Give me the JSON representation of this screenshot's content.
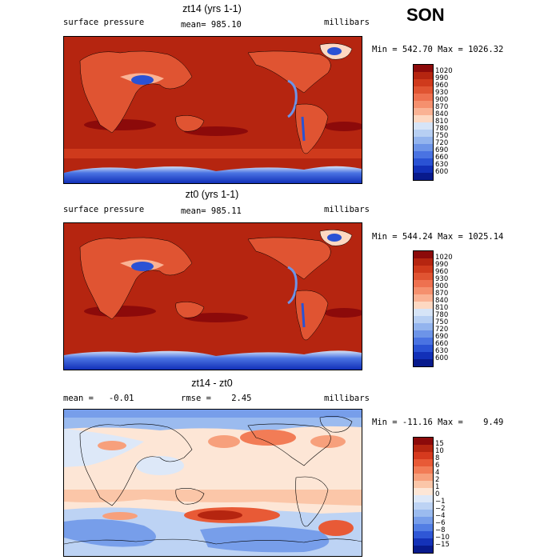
{
  "season": "SON",
  "panels": [
    {
      "title": "zt14 (yrs 1-1)",
      "left_label": "surface pressure",
      "center_label": "mean= 985.10",
      "right_label": "millibars",
      "stats": "Min = 542.70 Max = 1026.32",
      "colorbar": {
        "levels": [
          "1020",
          "990",
          "960",
          "930",
          "900",
          "870",
          "840",
          "810",
          "780",
          "750",
          "720",
          "690",
          "660",
          "630",
          "600"
        ],
        "colors": [
          "#8c0a0a",
          "#b52510",
          "#cf3a1c",
          "#e05432",
          "#ee7150",
          "#f5906e",
          "#fab294",
          "#fdd8c2",
          "#d6e4f7",
          "#b7cff3",
          "#93b4ee",
          "#6d94e8",
          "#4a73e2",
          "#2a52d4",
          "#1230b8",
          "#081a8c"
        ]
      },
      "map_style": "pressure"
    },
    {
      "title": "zt0 (yrs 1-1)",
      "left_label": "surface pressure",
      "center_label": "mean= 985.11",
      "right_label": "millibars",
      "stats": "Min = 544.24 Max = 1025.14",
      "colorbar": {
        "levels": [
          "1020",
          "990",
          "960",
          "930",
          "900",
          "870",
          "840",
          "810",
          "780",
          "750",
          "720",
          "690",
          "660",
          "630",
          "600"
        ],
        "colors": [
          "#8c0a0a",
          "#b52510",
          "#cf3a1c",
          "#e05432",
          "#ee7150",
          "#f5906e",
          "#fab294",
          "#fdd8c2",
          "#d6e4f7",
          "#b7cff3",
          "#93b4ee",
          "#6d94e8",
          "#4a73e2",
          "#2a52d4",
          "#1230b8",
          "#081a8c"
        ]
      },
      "map_style": "pressure"
    },
    {
      "title": "zt14 - zt0",
      "left_label": "mean =   -0.01",
      "center_label": "rmse =    2.45",
      "right_label": "millibars",
      "stats": "Min = -11.16 Max =    9.49",
      "colorbar": {
        "levels": [
          "15",
          "10",
          "8",
          "6",
          "4",
          "2",
          "1",
          "0",
          "−1",
          "−2",
          "−4",
          "−6",
          "−8",
          "−10",
          "−15"
        ],
        "colors": [
          "#8c0a0a",
          "#b52510",
          "#d63a1e",
          "#e85a36",
          "#f27c56",
          "#f7a07c",
          "#fbc6a8",
          "#fde6d6",
          "#dde8f8",
          "#bdd3f4",
          "#9bbbef",
          "#779eea",
          "#527ee4",
          "#2f57d6",
          "#1432b8",
          "#081a8c"
        ]
      },
      "map_style": "diff"
    }
  ]
}
